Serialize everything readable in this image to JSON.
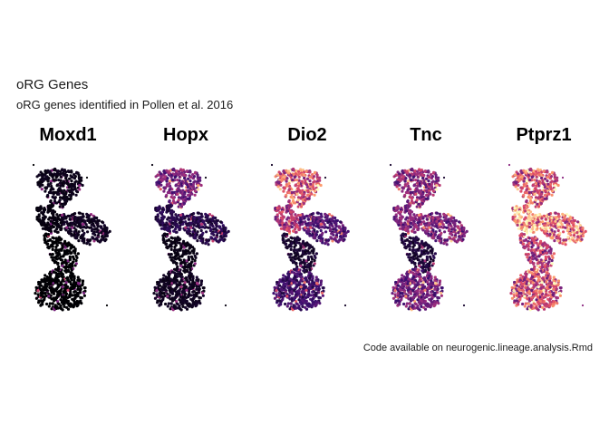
{
  "figure": {
    "title": "oRG Genes",
    "subtitle": "oRG genes identified in Pollen et al. 2016",
    "caption": "Code available on neurogenic.lineage.analysis.Rmd"
  },
  "chart_data": {
    "type": "scatter",
    "palette": [
      "#000004",
      "#3b0f70",
      "#8c2981",
      "#de4968",
      "#fe9f6d",
      "#fcfdbf"
    ],
    "background": "#ffffff",
    "grid": false,
    "legend": "none",
    "panels": [
      {
        "gene": "Moxd1",
        "expression": {
          "top": 0.04,
          "bridge": 0.02,
          "wing": 0.05,
          "bottom": 0.0,
          "base": 0.0
        }
      },
      {
        "gene": "Hopx",
        "expression": {
          "top": 0.35,
          "bridge": 0.12,
          "wing": 0.12,
          "bottom": 0.05,
          "base": 0.03
        }
      },
      {
        "gene": "Dio2",
        "expression": {
          "top": 0.62,
          "bridge": 0.45,
          "wing": 0.25,
          "bottom": 0.2,
          "base": 0.08
        }
      },
      {
        "gene": "Tnc",
        "expression": {
          "top": 0.4,
          "bridge": 0.35,
          "wing": 0.35,
          "bottom": 0.32,
          "base": 0.1
        }
      },
      {
        "gene": "Ptprz1",
        "expression": {
          "top": 0.6,
          "bridge": 0.75,
          "wing": 0.65,
          "bottom": 0.55,
          "base": 0.5
        }
      }
    ]
  }
}
